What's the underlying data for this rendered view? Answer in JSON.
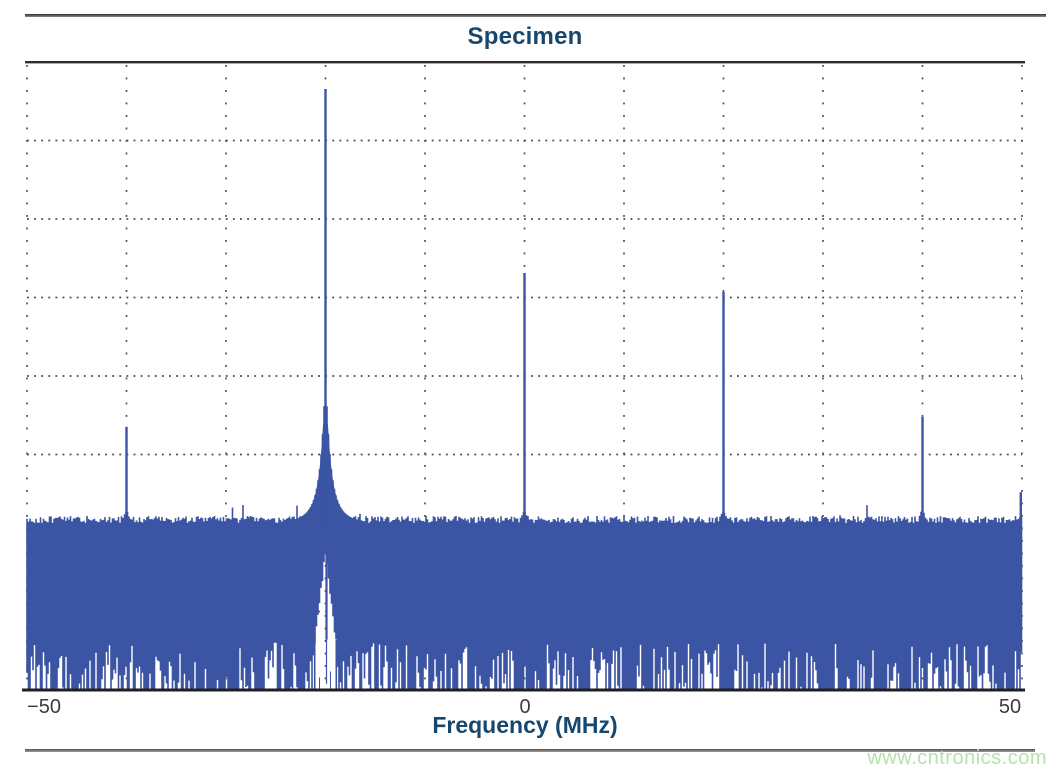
{
  "page": {
    "watermark": "www.cntronics.com"
  },
  "colors": {
    "series_blue": "#3b54a4",
    "title_navy": "#16486f",
    "tick_gray": "#3b3b3b",
    "grid_dot": "#4f4f4f",
    "plot_border": "#2f2f2f",
    "axis_black": "#202020",
    "watermark_green": "#b6e3ab"
  },
  "chart_data": {
    "type": "line",
    "title": "Specimen",
    "xlabel": "Frequency (MHz)",
    "ylabel": "",
    "xlim": [
      -50,
      50
    ],
    "x_ticks": [
      {
        "value": -50,
        "label": "−50"
      },
      {
        "value": 0,
        "label": "0"
      },
      {
        "value": 50,
        "label": "50"
      }
    ],
    "grid": {
      "style": "dotted",
      "x_interval_mhz": 10,
      "y_divisions": 8,
      "legend": "none"
    },
    "y_axis": {
      "labeled": false,
      "divisions": 8,
      "units": "no y tick labels shown; amplitudes given as fraction of plot height from top"
    },
    "peaks": [
      {
        "freq_mhz": -40,
        "tip_y_fraction": 0.581,
        "kind": "spur"
      },
      {
        "freq_mhz": -20,
        "tip_y_fraction": 0.043,
        "kind": "fundamental",
        "skirt": true,
        "wedge_below": true
      },
      {
        "freq_mhz": 0,
        "tip_y_fraction": 0.336,
        "kind": "spur"
      },
      {
        "freq_mhz": 20,
        "tip_y_fraction": 0.366,
        "kind": "spur"
      },
      {
        "freq_mhz": 40,
        "tip_y_fraction": 0.565,
        "kind": "spur"
      },
      {
        "freq_mhz": 50,
        "tip_y_fraction": 0.685,
        "kind": "edge-spur"
      }
    ],
    "noise_floor": {
      "top_fraction": 0.734,
      "solid_band_bottom_fraction": 0.92,
      "ragged_bottom_fraction": 1.0
    }
  }
}
